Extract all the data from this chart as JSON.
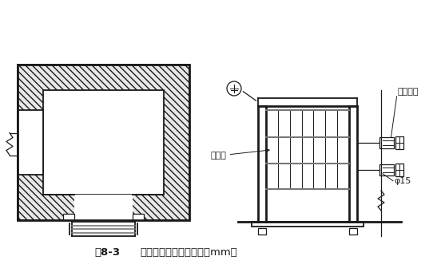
{
  "bg_color": "#ffffff",
  "line_color": "#1a1a1a",
  "gray_color": "#777777",
  "caption_fig": "图8-3",
  "caption_text": "电梯井口防护门（单位：mm）",
  "label_mengban": "铁栅门",
  "label_luoshuan": "膨胀螺栓",
  "label_phi": "φ15",
  "figsize": [
    5.52,
    3.46
  ],
  "dpi": 100
}
